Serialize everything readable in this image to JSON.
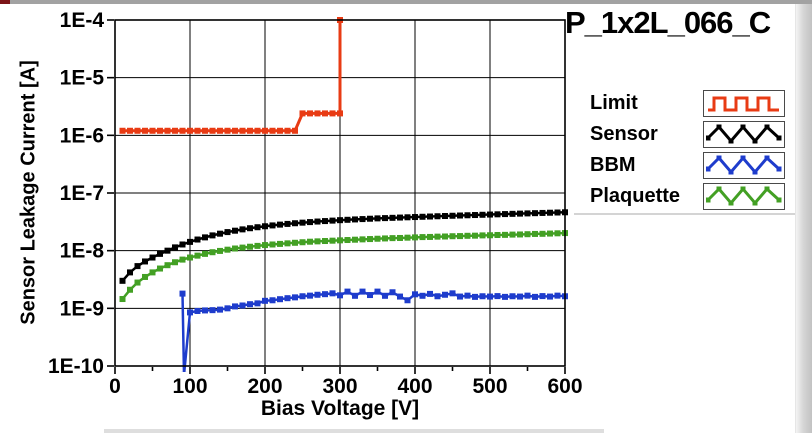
{
  "window": {
    "top_strip_color": "#a2a2a2",
    "corner_accent_color": "#7c1417"
  },
  "legend": {
    "items": [
      {
        "label": "Limit",
        "color": "#e83b14",
        "icon": "square-wave"
      },
      {
        "label": "Sensor",
        "color": "#000000",
        "icon": "triangle-wave"
      },
      {
        "label": "BBM",
        "color": "#1e3ccc",
        "icon": "triangle-wave"
      },
      {
        "label": "Plaquette",
        "color": "#43a024",
        "icon": "triangle-wave"
      }
    ]
  },
  "chart_data": {
    "type": "line",
    "title": "P_1x2L_066_C",
    "xlabel": "Bias Voltage [V]",
    "ylabel": "Sensor Leakage Current [A]",
    "xlim": [
      0,
      600
    ],
    "ylim": [
      1e-10,
      0.0001
    ],
    "yscale": "log",
    "grid": true,
    "legend_position": "right",
    "x_ticks": [
      0,
      100,
      200,
      300,
      400,
      500,
      600
    ],
    "x_minor_ticks": [
      50,
      150,
      250,
      350,
      450,
      550
    ],
    "y_ticks": [
      [
        "1E-4",
        0.0001
      ],
      [
        "1E-5",
        1e-05
      ],
      [
        "1E-6",
        1e-06
      ],
      [
        "1E-7",
        1e-07
      ],
      [
        "1E-8",
        1e-08
      ],
      [
        "1E-9",
        1e-09
      ],
      [
        "1E-10",
        1e-10
      ]
    ],
    "series": [
      {
        "name": "Limit",
        "color": "#e83b14",
        "x": [
          10,
          20,
          30,
          40,
          50,
          60,
          70,
          80,
          90,
          100,
          110,
          120,
          130,
          140,
          150,
          160,
          170,
          180,
          190,
          200,
          210,
          220,
          230,
          240,
          250,
          260,
          270,
          280,
          290,
          300,
          300
        ],
        "y": [
          1.2e-06,
          1.2e-06,
          1.2e-06,
          1.2e-06,
          1.2e-06,
          1.2e-06,
          1.2e-06,
          1.2e-06,
          1.2e-06,
          1.2e-06,
          1.2e-06,
          1.2e-06,
          1.2e-06,
          1.2e-06,
          1.2e-06,
          1.2e-06,
          1.2e-06,
          1.2e-06,
          1.2e-06,
          1.2e-06,
          1.2e-06,
          1.2e-06,
          1.2e-06,
          1.2e-06,
          2.4e-06,
          2.4e-06,
          2.4e-06,
          2.4e-06,
          2.4e-06,
          2.4e-06,
          0.0001
        ]
      },
      {
        "name": "Sensor",
        "color": "#000000",
        "x": [
          10,
          20,
          30,
          40,
          50,
          60,
          70,
          80,
          90,
          100,
          110,
          120,
          130,
          140,
          150,
          160,
          170,
          180,
          190,
          200,
          210,
          220,
          230,
          240,
          250,
          260,
          270,
          280,
          290,
          300,
          310,
          320,
          330,
          340,
          350,
          360,
          370,
          380,
          390,
          400,
          410,
          420,
          430,
          440,
          450,
          460,
          470,
          480,
          490,
          500,
          510,
          520,
          530,
          540,
          550,
          560,
          570,
          580,
          590,
          600
        ],
        "y": [
          3e-09,
          4.2e-09,
          5.4e-09,
          6.5e-09,
          7.6e-09,
          8.8e-09,
          1e-08,
          1.14e-08,
          1.28e-08,
          1.42e-08,
          1.56e-08,
          1.7e-08,
          1.84e-08,
          1.97e-08,
          2.1e-08,
          2.22e-08,
          2.34e-08,
          2.45e-08,
          2.55e-08,
          2.65e-08,
          2.74e-08,
          2.83e-08,
          2.91e-08,
          2.99e-08,
          3.06e-08,
          3.13e-08,
          3.2e-08,
          3.26e-08,
          3.32e-08,
          3.38e-08,
          3.43e-08,
          3.48e-08,
          3.53e-08,
          3.58e-08,
          3.63e-08,
          3.67e-08,
          3.71e-08,
          3.75e-08,
          3.79e-08,
          3.83e-08,
          3.87e-08,
          3.91e-08,
          3.95e-08,
          3.99e-08,
          4.03e-08,
          4.07e-08,
          4.11e-08,
          4.15e-08,
          4.19e-08,
          4.23e-08,
          4.27e-08,
          4.31e-08,
          4.35e-08,
          4.39e-08,
          4.43e-08,
          4.47e-08,
          4.51e-08,
          4.55e-08,
          4.59e-08,
          4.63e-08
        ]
      },
      {
        "name": "BBM",
        "color": "#1e3ccc",
        "x": [
          90,
          92,
          100,
          110,
          120,
          130,
          140,
          150,
          160,
          170,
          180,
          190,
          200,
          210,
          220,
          230,
          240,
          250,
          260,
          270,
          280,
          290,
          300,
          310,
          320,
          330,
          340,
          350,
          360,
          370,
          380,
          390,
          400,
          410,
          420,
          430,
          440,
          450,
          460,
          470,
          480,
          490,
          500,
          510,
          520,
          530,
          540,
          550,
          560,
          570,
          580,
          590,
          600
        ],
        "y": [
          1.8e-09,
          7e-11,
          8.5e-10,
          9e-10,
          9.2e-10,
          9.3e-10,
          9.5e-10,
          1e-09,
          1.08e-09,
          1.12e-09,
          1.18e-09,
          1.22e-09,
          1.35e-09,
          1.38e-09,
          1.44e-09,
          1.5e-09,
          1.55e-09,
          1.62e-09,
          1.66e-09,
          1.72e-09,
          1.76e-09,
          1.82e-09,
          1.68e-09,
          1.95e-09,
          1.65e-09,
          1.95e-09,
          1.7e-09,
          1.95e-09,
          1.65e-09,
          1.9e-09,
          1.6e-09,
          1.38e-09,
          1.75e-09,
          1.65e-09,
          1.78e-09,
          1.62e-09,
          1.72e-09,
          1.82e-09,
          1.6e-09,
          1.66e-09,
          1.58e-09,
          1.62e-09,
          1.6e-09,
          1.63e-09,
          1.58e-09,
          1.62e-09,
          1.6e-09,
          1.66e-09,
          1.58e-09,
          1.63e-09,
          1.6e-09,
          1.66e-09,
          1.62e-09
        ]
      },
      {
        "name": "Plaquette",
        "color": "#43a024",
        "x": [
          10,
          20,
          30,
          40,
          50,
          60,
          70,
          80,
          90,
          100,
          110,
          120,
          130,
          140,
          150,
          160,
          170,
          180,
          190,
          200,
          210,
          220,
          230,
          240,
          250,
          260,
          270,
          280,
          290,
          300,
          310,
          320,
          330,
          340,
          350,
          360,
          370,
          380,
          390,
          400,
          410,
          420,
          430,
          440,
          450,
          460,
          470,
          480,
          490,
          500,
          510,
          520,
          530,
          540,
          550,
          560,
          570,
          580,
          590,
          600
        ],
        "y": [
          1.45e-09,
          2.1e-09,
          2.8e-09,
          3.5e-09,
          4.2e-09,
          4.9e-09,
          5.6e-09,
          6.3e-09,
          7e-09,
          7.6e-09,
          8.2e-09,
          8.8e-09,
          9.4e-09,
          9.9e-09,
          1.04e-08,
          1.09e-08,
          1.13e-08,
          1.17e-08,
          1.21e-08,
          1.25e-08,
          1.28e-08,
          1.31e-08,
          1.34e-08,
          1.37e-08,
          1.4e-08,
          1.43e-08,
          1.45e-08,
          1.47e-08,
          1.49e-08,
          1.51e-08,
          1.53e-08,
          1.55e-08,
          1.57e-08,
          1.59e-08,
          1.61e-08,
          1.63e-08,
          1.65e-08,
          1.66e-08,
          1.68e-08,
          1.7e-08,
          1.72e-08,
          1.73e-08,
          1.75e-08,
          1.76e-08,
          1.78e-08,
          1.79e-08,
          1.81e-08,
          1.82e-08,
          1.84e-08,
          1.85e-08,
          1.87e-08,
          1.88e-08,
          1.9e-08,
          1.91e-08,
          1.93e-08,
          1.95e-08,
          1.96e-08,
          1.98e-08,
          2e-08,
          2.02e-08
        ]
      }
    ]
  }
}
